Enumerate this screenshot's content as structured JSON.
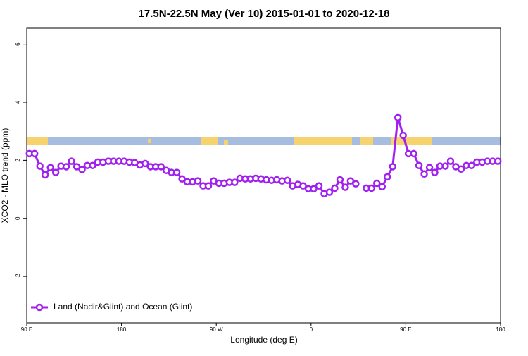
{
  "chart_data": {
    "type": "line",
    "title": "17.5N-22.5N May (Ver 10)   2015-01-01 to 2020-12-18",
    "x_label": "Longitude (deg E)",
    "y_label": "XCO2 - MLO trend (ppm)",
    "xlim": [
      90,
      540
    ],
    "ylim": [
      -3.6,
      6.55
    ],
    "xticks": [
      {
        "value": 90,
        "label": "90 E"
      },
      180,
      {
        "value": 270,
        "label": "90 W"
      },
      {
        "value": 360,
        "label": "0"
      },
      {
        "value": 450,
        "label": "90 E"
      },
      {
        "value": 540,
        "label": "180"
      }
    ],
    "yticks": [
      -2,
      0,
      2,
      4,
      6
    ],
    "legend_position": "bottomleft",
    "x": [
      92.5,
      97.5,
      102.5,
      107.5,
      112.5,
      117.5,
      122.5,
      127.5,
      132.5,
      137.5,
      142.5,
      147.5,
      152.5,
      157.5,
      162.5,
      167.5,
      172.5,
      177.5,
      182.5,
      187.5,
      192.5,
      197.5,
      202.5,
      207.5,
      212.5,
      217.5,
      222.5,
      227.5,
      232.5,
      237.5,
      242.5,
      247.5,
      252.5,
      257.5,
      262.5,
      267.5,
      272.5,
      277.5,
      282.5,
      287.5,
      292.5,
      297.5,
      302.5,
      307.5,
      312.5,
      317.5,
      322.5,
      327.5,
      332.5,
      337.5,
      342.5,
      347.5,
      352.5,
      357.5,
      362.5,
      367.5,
      372.5,
      377.5,
      382.5,
      387.5,
      392.5,
      397.5,
      402.5,
      407.5,
      412.5,
      417.5,
      422.5,
      427.5,
      432.5,
      437.5,
      442.5,
      447.5,
      452.5,
      457.5,
      462.5,
      467.5,
      472.5,
      477.5,
      482.5,
      487.5,
      492.5,
      497.5,
      502.5,
      507.5,
      512.5,
      517.5,
      522.5,
      527.5,
      532.5,
      537.5
    ],
    "series": [
      {
        "name": "Land (Nadir&Glint) and Ocean (Glint)",
        "color": "#a020f0",
        "values": [
          2.23,
          2.23,
          1.8,
          1.5,
          1.75,
          1.58,
          1.8,
          1.78,
          1.97,
          1.78,
          1.68,
          1.82,
          1.82,
          1.94,
          1.94,
          1.97,
          1.97,
          1.97,
          1.97,
          1.94,
          1.92,
          1.84,
          1.89,
          1.78,
          1.78,
          1.78,
          1.65,
          1.58,
          1.58,
          1.36,
          1.26,
          1.26,
          1.29,
          1.12,
          1.12,
          1.29,
          1.21,
          1.21,
          1.24,
          1.24,
          1.38,
          1.36,
          1.36,
          1.38,
          1.36,
          1.33,
          1.31,
          1.33,
          1.29,
          1.31,
          1.12,
          1.17,
          1.12,
          1.02,
          1.02,
          1.12,
          0.85,
          0.9,
          1.04,
          1.33,
          1.07,
          1.29,
          1.19,
          null,
          1.04,
          1.04,
          1.21,
          1.09,
          1.43,
          1.78,
          3.47,
          2.86,
          2.23,
          2.23,
          1.82,
          1.53,
          1.75,
          1.58,
          1.8,
          1.8,
          1.97,
          1.78,
          1.7,
          1.82,
          1.82,
          1.94,
          1.94,
          1.97,
          1.97,
          1.97
        ]
      }
    ]
  }
}
